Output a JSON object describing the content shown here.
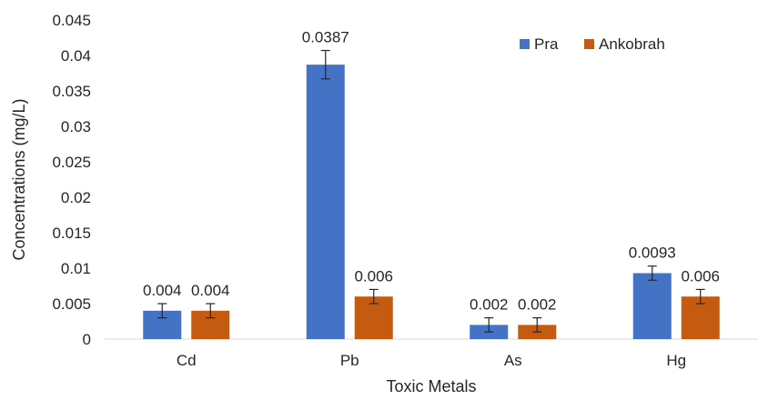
{
  "chart_data": {
    "type": "bar",
    "title": "",
    "xlabel": "Toxic Metals",
    "ylabel": "Concentrations (mg/L)",
    "categories": [
      "Cd",
      "Pb",
      "As",
      "Hg"
    ],
    "series": [
      {
        "name": "Pra",
        "color": "#4472C4",
        "values": [
          0.004,
          0.0387,
          0.002,
          0.0093
        ],
        "labels": [
          "0.004",
          "0.0387",
          "0.002",
          "0.0093"
        ],
        "error": [
          0.001,
          0.002,
          0.001,
          0.001
        ]
      },
      {
        "name": "Ankobrah",
        "color": "#C55A11",
        "values": [
          0.004,
          0.006,
          0.002,
          0.006
        ],
        "labels": [
          "0.004",
          "0.006",
          "0.002",
          "0.006"
        ],
        "error": [
          0.001,
          0.001,
          0.001,
          0.001
        ]
      }
    ],
    "ylim": [
      0,
      0.045
    ],
    "yticks": [
      "0",
      "0.005",
      "0.01",
      "0.015",
      "0.02",
      "0.025",
      "0.03",
      "0.035",
      "0.04",
      "0.045"
    ],
    "ytick_values": [
      0,
      0.005,
      0.01,
      0.015,
      0.02,
      0.025,
      0.03,
      0.035,
      0.04,
      0.045
    ],
    "grid": false,
    "legend": "top-right"
  }
}
